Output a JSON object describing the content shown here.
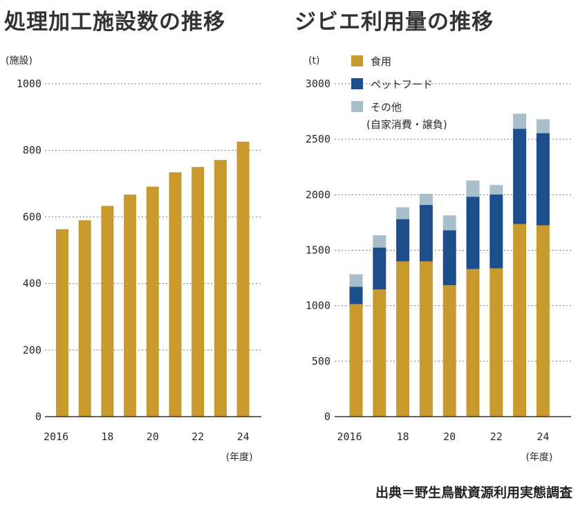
{
  "titles": {
    "left": "処理加工施設数の推移",
    "right": "ジビエ利用量の推移"
  },
  "source": "出典＝野生鳥獣資源利用実態調査",
  "colors": {
    "food": "#C89A2E",
    "pet": "#1C4E8C",
    "other": "#A9BECB",
    "grid": "#777777",
    "axis": "#333333"
  },
  "chart_data": [
    {
      "type": "bar",
      "unit_label": "(施設)",
      "x_unit_label": "(年度)",
      "categories": [
        "2016",
        "2017",
        "2018",
        "2019",
        "2020",
        "2021",
        "2022",
        "2023",
        "2024"
      ],
      "x_tick_labels": [
        "2016",
        "",
        "18",
        "",
        "20",
        "",
        "22",
        "",
        "24"
      ],
      "values": [
        563,
        590,
        633,
        667,
        691,
        734,
        750,
        771,
        826
      ],
      "ylim": [
        0,
        1000
      ],
      "yticks": [
        "0",
        "200",
        "400",
        "600",
        "800",
        "1000"
      ],
      "grid": true
    },
    {
      "type": "bar",
      "stacked": true,
      "unit_label": "(t)",
      "x_unit_label": "(年度)",
      "categories": [
        "2016",
        "2017",
        "2018",
        "2019",
        "2020",
        "2021",
        "2022",
        "2023",
        "2024"
      ],
      "x_tick_labels": [
        "2016",
        "",
        "18",
        "",
        "20",
        "",
        "22",
        "",
        "24"
      ],
      "ylim": [
        0,
        3000
      ],
      "yticks": [
        "0",
        "500",
        "1000",
        "1500",
        "2000",
        "2500",
        "3000"
      ],
      "grid": true,
      "legend_position": "top-left",
      "series": [
        {
          "name": "食用",
          "color_key": "food",
          "values": [
            1014,
            1146,
            1400,
            1400,
            1184,
            1330,
            1336,
            1736,
            1724
          ]
        },
        {
          "name": "ペットフード",
          "color_key": "pet",
          "values": [
            157,
            378,
            380,
            508,
            496,
            652,
            666,
            858,
            830
          ]
        },
        {
          "name": "その他\n(自家消費・譲負)",
          "color_key": "other",
          "values": [
            112,
            110,
            107,
            100,
            134,
            146,
            86,
            136,
            126
          ]
        }
      ]
    }
  ]
}
